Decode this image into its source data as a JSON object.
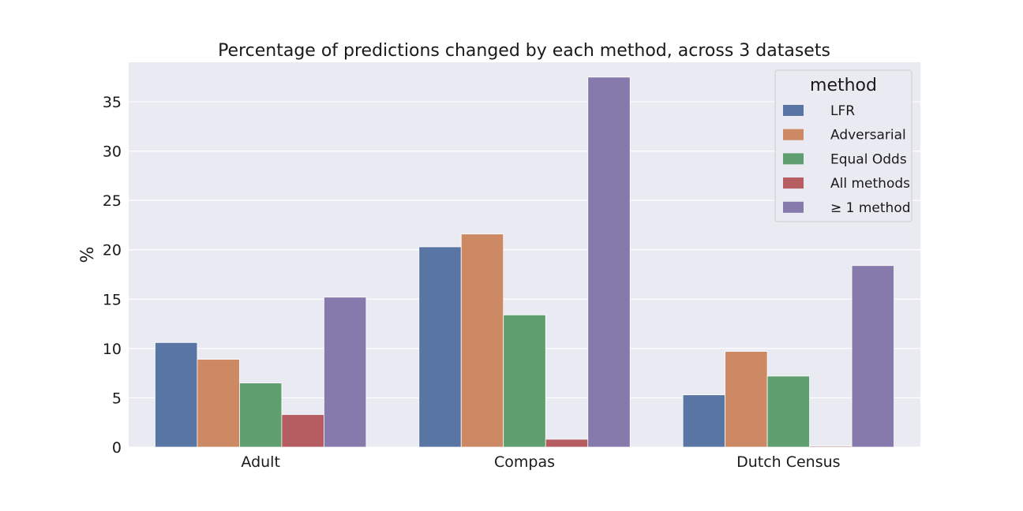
{
  "chart_data": {
    "type": "bar",
    "title": "Percentage of predictions changed by each method, across 3 datasets",
    "xlabel": "",
    "ylabel": "%",
    "categories": [
      "Adult",
      "Compas",
      "Dutch Census"
    ],
    "ylim": [
      0,
      39
    ],
    "yticks": [
      0,
      5,
      10,
      15,
      20,
      25,
      30,
      35
    ],
    "grid": true,
    "legend": {
      "title": "method",
      "position": "top-right"
    },
    "series": [
      {
        "name": "LFR",
        "color": "#5875a4",
        "values": [
          10.6,
          20.3,
          5.3
        ]
      },
      {
        "name": "Adversarial",
        "color": "#cc8963",
        "values": [
          8.9,
          21.6,
          9.7
        ]
      },
      {
        "name": "Equal Odds",
        "color": "#5f9e6e",
        "values": [
          6.5,
          13.4,
          7.2
        ]
      },
      {
        "name": "All methods",
        "color": "#b55d60",
        "values": [
          3.3,
          0.8,
          0.1
        ]
      },
      {
        "name": "≥ 1 method",
        "color": "#857aab",
        "values": [
          15.2,
          37.5,
          18.4
        ]
      }
    ]
  },
  "colors": {
    "plot_background": "#eaeaf2",
    "gridline": "#ffffff"
  }
}
